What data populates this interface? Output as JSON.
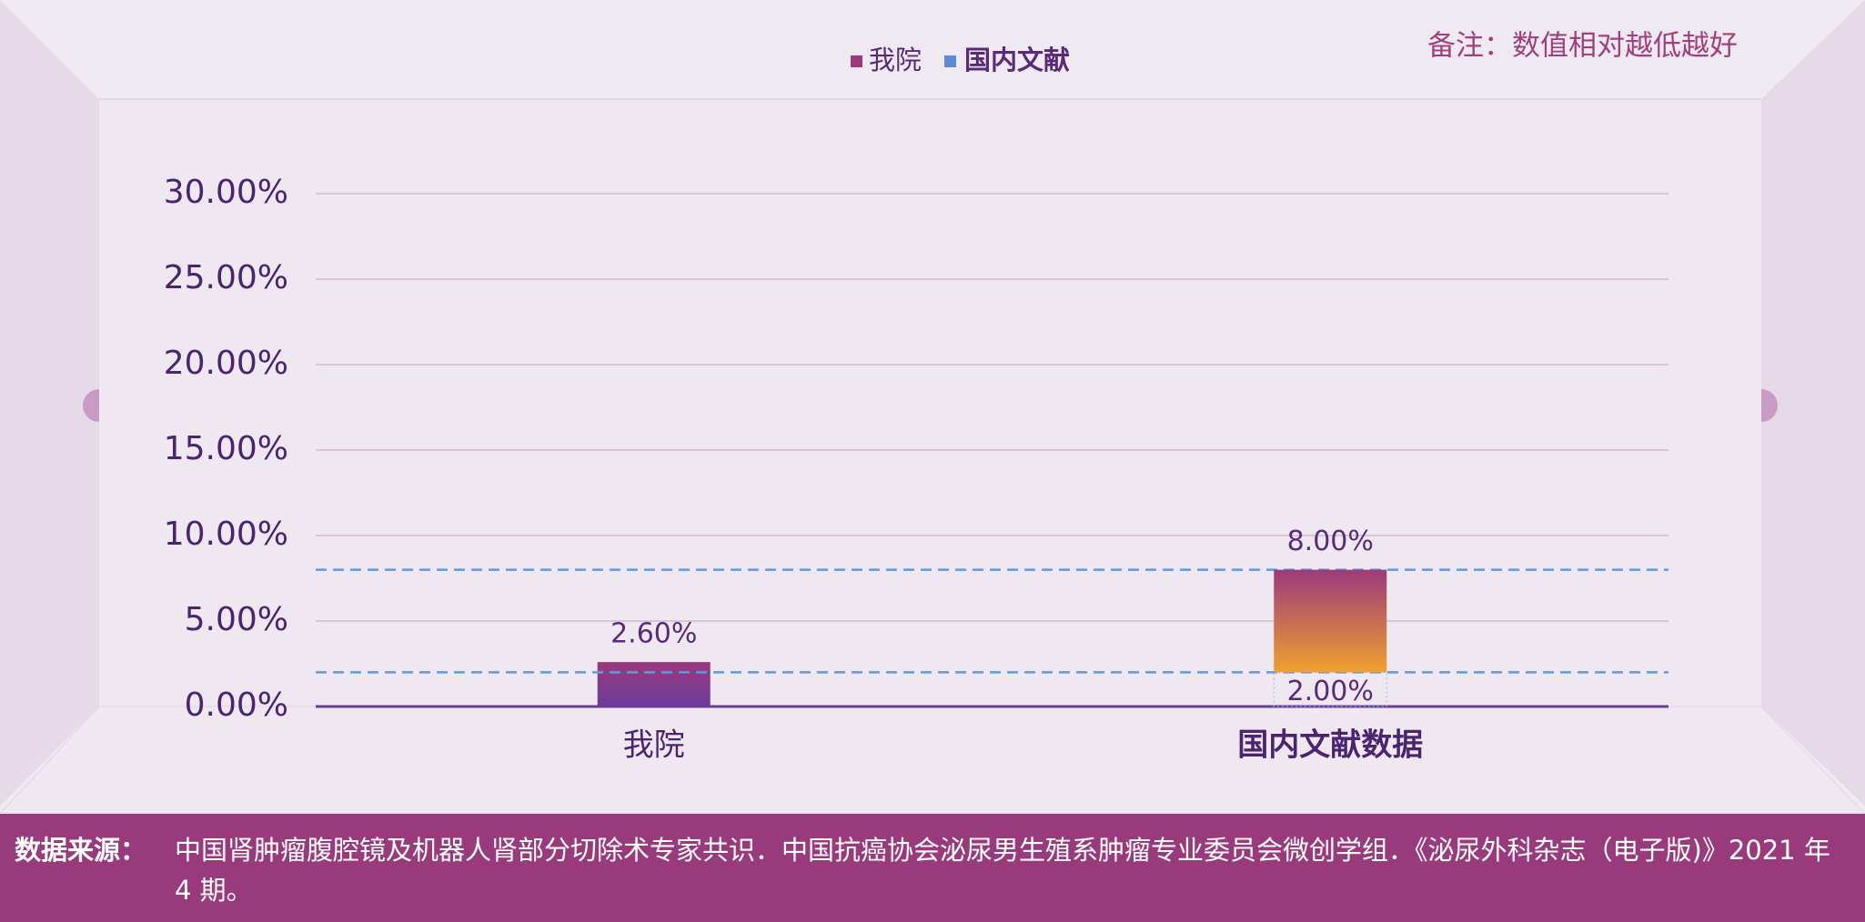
{
  "legend": [
    "我院",
    "国内文献"
  ],
  "note": "备注：数值相对越低越好",
  "chart_data": {
    "type": "bar",
    "categories": [
      "我院",
      "国内文献数据"
    ],
    "series": [
      {
        "name": "我院",
        "colors": [
          "#9b3a7b",
          "#6b3c9c"
        ],
        "values": [
          2.6,
          null
        ],
        "value_labels": [
          "2.60%",
          null
        ]
      },
      {
        "name": "国内文献",
        "colors": [
          "#9b3a7b",
          "#f0a030"
        ],
        "values": [
          null,
          8
        ],
        "value_labels": [
          null,
          "8.00%"
        ],
        "base": [
          null,
          2
        ],
        "base_labels": [
          null,
          "2.00%"
        ]
      }
    ],
    "ylim": [
      0,
      30
    ],
    "yticks": [
      {
        "value": 0,
        "label": "0.00%"
      },
      {
        "value": 5,
        "label": "5.00%"
      },
      {
        "value": 10,
        "label": "10.00%"
      },
      {
        "value": 15,
        "label": "15.00%"
      },
      {
        "value": 20,
        "label": "20.00%"
      },
      {
        "value": 25,
        "label": "25.00%"
      },
      {
        "value": 30,
        "label": "30.00%"
      }
    ],
    "grid": true
  },
  "footer": {
    "label": "数据来源：",
    "text": "中国肾肿瘤腹腔镜及机器人肾部分切除术专家共识．中国抗癌协会泌尿男生殖系肿瘤专业委员会微创学组．《泌尿外科杂志（电子版)》2021 年 4 期。"
  }
}
